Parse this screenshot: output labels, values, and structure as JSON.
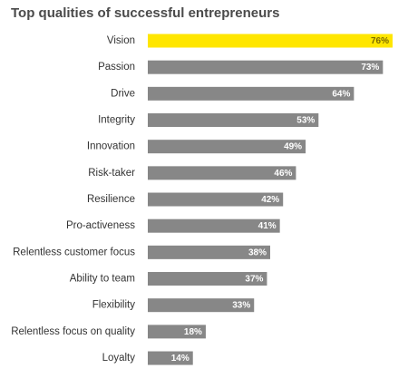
{
  "chart_data": {
    "type": "bar",
    "orientation": "horizontal",
    "title": "Top qualities of successful entrepreneurs",
    "categories": [
      "Vision",
      "Passion",
      "Drive",
      "Integrity",
      "Innovation",
      "Risk-taker",
      "Resilience",
      "Pro-activeness",
      "Relentless customer focus",
      "Ability to team",
      "Flexibility",
      "Relentless focus on quality",
      "Loyalty"
    ],
    "values": [
      76,
      73,
      64,
      53,
      49,
      46,
      42,
      41,
      38,
      37,
      33,
      18,
      14
    ],
    "value_labels": [
      "76%",
      "73%",
      "64%",
      "53%",
      "49%",
      "46%",
      "42%",
      "41%",
      "38%",
      "37%",
      "33%",
      "18%",
      "14%"
    ],
    "xlim": [
      0,
      76
    ],
    "highlight_index": 0,
    "colors": {
      "highlight_bar": "#ffe600",
      "highlight_label": "#7a6a00",
      "bar": "#878787",
      "label_on_bar": "#ffffff"
    }
  }
}
